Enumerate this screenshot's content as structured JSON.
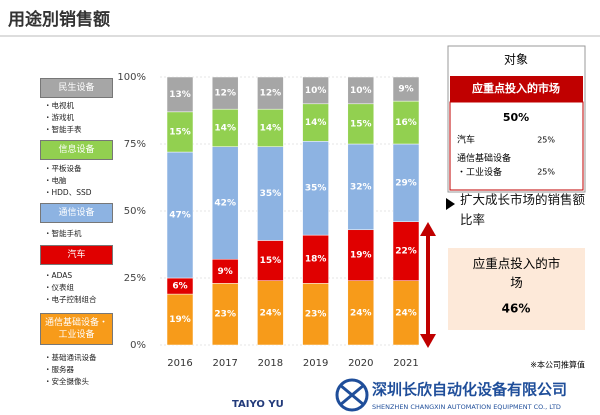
{
  "title": "用途別销售额",
  "legend_notes": [
    [
      "电视机",
      "游戏机",
      "智能手表"
    ],
    [
      "平板设备",
      "电脑",
      "HDD、SSD"
    ],
    [
      "智能手机"
    ],
    [
      "ADAS",
      "仪表组",
      "电子控制组合"
    ],
    [
      "基础通讯设备",
      "服务器",
      "安全摄像头"
    ]
  ],
  "target_panel": {
    "heading": "对象",
    "banner": "应重点投入的市场",
    "total": "50%",
    "rows": [
      {
        "label": "汽车",
        "value": "25%"
      },
      {
        "label": "通信基础设备\n・工业设备",
        "value": "25%"
      }
    ]
  },
  "growth_text": "扩大成长市场的销售额比率",
  "focus_box": {
    "label": "应重点投入的市场",
    "value": "46%"
  },
  "footnote": "※本公司推算值",
  "footer": {
    "brand": "TAIYO YU",
    "company": "深圳长欣自动化设备有限公司",
    "company_en": "SHENZHEN CHANGXIN AUTOMATION EQUIPMENT CO., LTD"
  },
  "chart_data": {
    "type": "stacked_bar",
    "categories": [
      "2016",
      "2017",
      "2018",
      "2019",
      "2020",
      "2021"
    ],
    "series": [
      {
        "name": "通信基础设备・工业设备",
        "color": "#f79b1a",
        "values": [
          19,
          23,
          24,
          23,
          24,
          24
        ],
        "value_labels": [
          "19%",
          "23%",
          "24%",
          "23%",
          "24%",
          "24%"
        ]
      },
      {
        "name": "汽车",
        "color": "#e00000",
        "values": [
          6,
          9,
          15,
          18,
          19,
          22
        ],
        "value_labels": [
          "6%",
          "9%",
          "15%",
          "18%",
          "19%",
          "22%"
        ]
      },
      {
        "name": "通信设备",
        "color": "#8db3e2",
        "values": [
          47,
          42,
          35,
          35,
          32,
          29
        ],
        "value_labels": [
          "47%",
          "42%",
          "35%",
          "35%",
          "32%",
          "29%"
        ]
      },
      {
        "name": "信息设备",
        "color": "#92d050",
        "values": [
          15,
          14,
          14,
          14,
          15,
          16
        ],
        "value_labels": [
          "15%",
          "14%",
          "14%",
          "14%",
          "15%",
          "16%"
        ]
      },
      {
        "name": "民生设备",
        "color": "#a6a6a6",
        "values": [
          13,
          12,
          12,
          10,
          10,
          9
        ],
        "value_labels": [
          "13%",
          "12%",
          "12%",
          "10%",
          "10%",
          "9%"
        ]
      }
    ],
    "ylim": [
      0,
      100
    ],
    "yticks": [
      {
        "value": 0,
        "label": "0%"
      },
      {
        "value": 25,
        "label": "25%"
      },
      {
        "value": 50,
        "label": "50%"
      },
      {
        "value": 75,
        "label": "75%"
      },
      {
        "value": 100,
        "label": "100%"
      }
    ],
    "grid": true
  }
}
